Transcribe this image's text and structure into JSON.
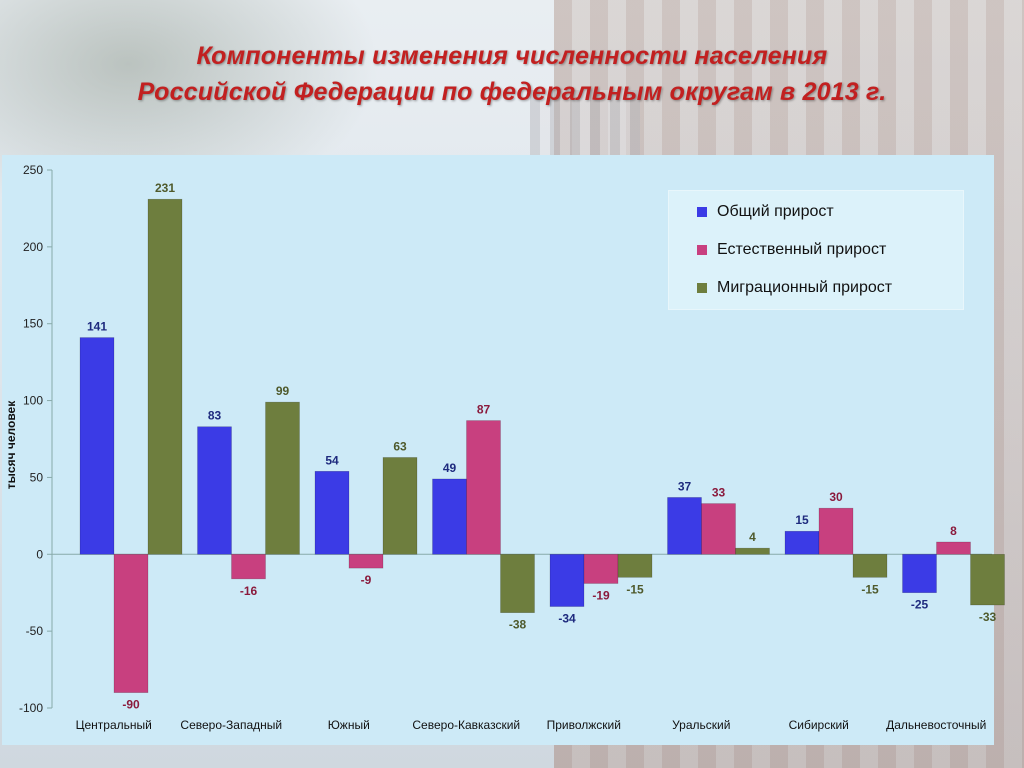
{
  "title_line1": "Компоненты изменения численности населения",
  "title_line2": "Российской Федерации по федеральным округам в 2013 г.",
  "colors": {
    "series": [
      "#3b3be6",
      "#c8407f",
      "#6e7e3e"
    ],
    "labels": [
      "#1e2a7e",
      "#8a1a3c",
      "#4f5a2c"
    ],
    "axis": "#9ab",
    "panel": "#cdeaf7"
  },
  "chart_data": {
    "type": "bar",
    "title": "Компоненты изменения численности населения Российской Федерации по федеральным округам в 2013 г.",
    "ylabel": "тысяч человек",
    "xlabel": "",
    "ylim": [
      -100,
      250
    ],
    "yticks": [
      -100,
      -50,
      0,
      50,
      100,
      150,
      200,
      250
    ],
    "ytick_labels": [
      "-100",
      "-50",
      "0",
      "50",
      "100",
      "150",
      "200",
      "250"
    ],
    "grid": false,
    "legend_position": "top-right",
    "categories": [
      "Центральный",
      "Северо-Западный",
      "Южный",
      "Северо-Кавказский",
      "Приволжский",
      "Уральский",
      "Сибирский",
      "Дальневосточный"
    ],
    "series": [
      {
        "name": "Общий прирост",
        "values": [
          141,
          83,
          54,
          49,
          -34,
          37,
          15,
          -25
        ],
        "labels": [
          "141",
          "83",
          "54",
          "49",
          "-34",
          "37",
          "15",
          "-25"
        ]
      },
      {
        "name": "Естественный прирост",
        "values": [
          -90,
          -16,
          -9,
          87,
          -19,
          33,
          30,
          8
        ],
        "labels": [
          "-90",
          "-16",
          "-9",
          "87",
          "-19",
          "33",
          "30",
          "8"
        ]
      },
      {
        "name": "Миграционный прирост",
        "values": [
          231,
          99,
          63,
          -38,
          -15,
          4,
          -15,
          -33
        ],
        "labels": [
          "231",
          "99",
          "63",
          "-38",
          "-15",
          "4",
          "-15",
          "-33"
        ]
      }
    ]
  }
}
